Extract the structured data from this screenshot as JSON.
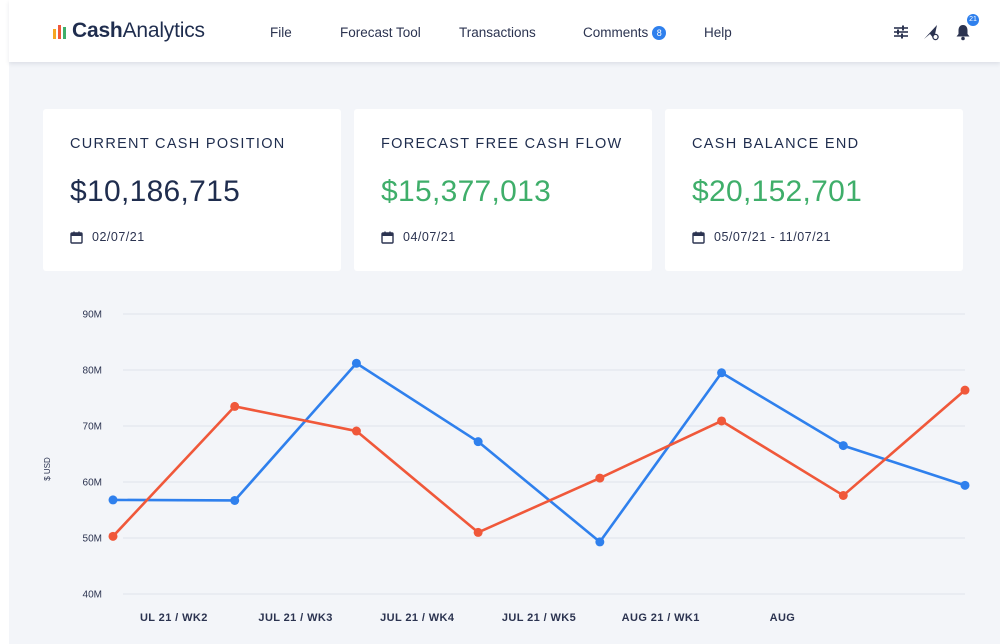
{
  "app": {
    "logo_bold": "Cash",
    "logo_regular": "Analytics"
  },
  "nav": {
    "file": "File",
    "forecast_tool": "Forecast Tool",
    "transactions": "Transactions",
    "comments": "Comments",
    "comments_badge": "8",
    "help": "Help",
    "notifications_badge": "21"
  },
  "cards": [
    {
      "title": "CURRENT CASH POSITION",
      "value": "$10,186,715",
      "date": "02/07/21"
    },
    {
      "title": "FORECAST FREE CASH FLOW",
      "value": "$15,377,013",
      "date": "04/07/21"
    },
    {
      "title": "CASH BALANCE END",
      "value": "$20,152,701",
      "date": "05/07/21 - 11/07/21"
    }
  ],
  "colors": {
    "blue_series": "#2f80ed",
    "orange_series": "#f0583a",
    "green_value": "#3fae6a",
    "navy_text": "#1f2d4e"
  },
  "chart_data": {
    "type": "line",
    "ylabel": "$ USD",
    "ylim": [
      40,
      90
    ],
    "yticks": [
      90,
      80,
      70,
      60,
      50,
      40
    ],
    "ytick_labels": [
      "90M",
      "80M",
      "70M",
      "60M",
      "50M",
      "40M"
    ],
    "categories": [
      "UL 21 / WK2",
      "JUL 21 / WK3",
      "JUL 21 / WK4",
      "JUL 21 / WK5",
      "AUG 21 / WK1",
      "AUG"
    ],
    "category_positions": [
      1,
      3,
      5,
      7,
      9,
      11
    ],
    "x": [
      0,
      2,
      4,
      6,
      8,
      10,
      12,
      14
    ],
    "xlim": [
      0,
      14
    ],
    "series": [
      {
        "name": "blue",
        "color": "#2f80ed",
        "values": [
          56.8,
          56.7,
          81.2,
          67.2,
          49.3,
          79.5,
          66.5,
          59.4
        ]
      },
      {
        "name": "orange",
        "color": "#f0583a",
        "values": [
          50.3,
          73.5,
          69.1,
          51.0,
          60.7,
          70.9,
          57.6,
          76.4
        ]
      }
    ]
  }
}
